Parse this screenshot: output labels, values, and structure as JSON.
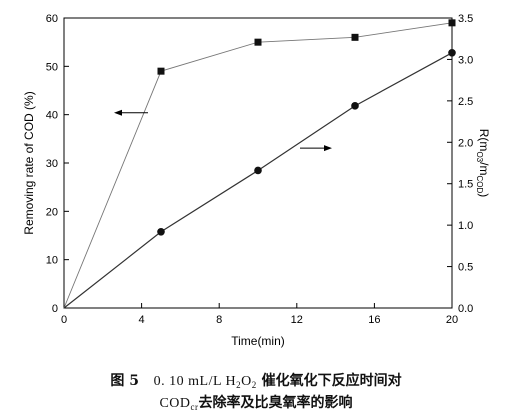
{
  "chart_data": {
    "type": "line",
    "x": [
      0,
      5,
      10,
      15,
      20
    ],
    "xlim": [
      0,
      20
    ],
    "xticks": [
      0,
      4,
      8,
      12,
      16,
      20
    ],
    "xlabel": "Time(min)",
    "y_left": {
      "label": "Removing rate of COD (%)",
      "lim": [
        0,
        60
      ],
      "ticks": [
        0,
        10,
        20,
        30,
        40,
        50,
        60
      ]
    },
    "y_right": {
      "label_main": "R(m",
      "label_sub1": "O3",
      "label_mid": "/m",
      "label_sub2": "COD",
      "label_end": ")",
      "lim": [
        0,
        3.5
      ],
      "ticks": [
        0.0,
        0.5,
        1.0,
        1.5,
        2.0,
        2.5,
        3.0,
        3.5
      ]
    },
    "series": [
      {
        "axis": "left",
        "marker": "square",
        "values": [
          0,
          49,
          55,
          56,
          59
        ]
      },
      {
        "axis": "right",
        "marker": "circle",
        "values": [
          0,
          0.92,
          1.66,
          2.44,
          3.08
        ]
      }
    ],
    "annotations": [
      {
        "type": "arrow",
        "direction": "left",
        "points_to": "left axis"
      },
      {
        "type": "arrow",
        "direction": "right",
        "points_to": "right axis"
      }
    ],
    "grid": false
  },
  "caption": {
    "fig_label": "图 5",
    "line1_num": "0. 10 mL/L H",
    "h2o2_sub1": "2",
    "h2o2_o": "O",
    "h2o2_sub2": "2",
    "line1_cn": "催化氧化下反应时间对",
    "line2_cod": "COD",
    "line2_sub": "cr",
    "line2_cn": "去除率及比臭氧率的影响"
  }
}
